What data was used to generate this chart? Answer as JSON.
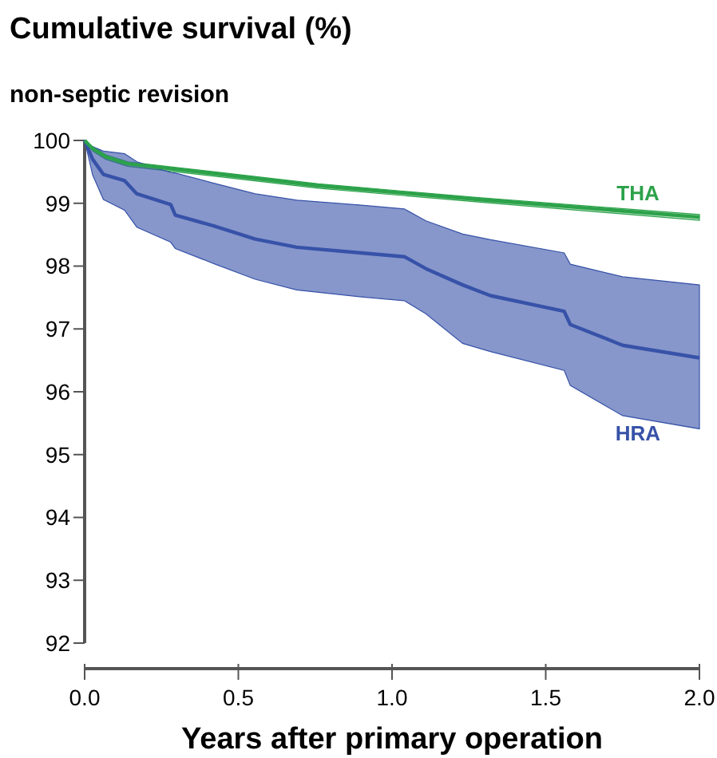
{
  "chart_data": {
    "type": "line",
    "title": "Cumulative survival (%)",
    "subtitle": "non-septic revision",
    "xlabel": "Years after primary operation",
    "xlim": [
      0,
      2
    ],
    "xticks": [
      {
        "value": 0,
        "label": "0.0"
      },
      0.5,
      {
        "value": 1,
        "label": "1.0"
      },
      1.5,
      {
        "value": 2,
        "label": "2.0"
      }
    ],
    "ylim": [
      92,
      100
    ],
    "yticks": [
      92,
      93,
      94,
      95,
      96,
      97,
      98,
      99,
      100
    ],
    "grid": false,
    "legend": false,
    "marker": "none",
    "line_style": "solid",
    "series": [
      {
        "name": "THA",
        "color": "#2ca24a",
        "x": [
          0,
          0.026,
          0.069,
          0.14,
          0.28,
          0.76,
          1.28,
          2.0
        ],
        "values": [
          100,
          99.87,
          99.74,
          99.63,
          99.55,
          99.28,
          99.06,
          98.78
        ],
        "lower": [
          100,
          99.83,
          99.7,
          99.59,
          99.51,
          99.24,
          99.02,
          98.73
        ],
        "upper": [
          100,
          99.9,
          99.77,
          99.66,
          99.58,
          99.31,
          99.09,
          98.82
        ]
      },
      {
        "name": "HRA",
        "color": "#3752a8",
        "x": [
          0,
          0.026,
          0.061,
          0.13,
          0.17,
          0.28,
          0.295,
          0.42,
          0.555,
          0.69,
          0.9,
          1.04,
          1.11,
          1.23,
          1.32,
          1.56,
          1.58,
          1.75,
          2.0
        ],
        "values": [
          100,
          99.7,
          99.46,
          99.36,
          99.15,
          98.98,
          98.81,
          98.64,
          98.43,
          98.3,
          98.21,
          98.15,
          97.96,
          97.7,
          97.53,
          97.28,
          97.07,
          96.74,
          96.54
        ],
        "lower": [
          100,
          99.45,
          99.06,
          98.89,
          98.62,
          98.38,
          98.28,
          98.04,
          97.79,
          97.62,
          97.51,
          97.45,
          97.24,
          96.77,
          96.64,
          96.34,
          96.1,
          95.62,
          95.41
        ],
        "upper": [
          100,
          99.9,
          99.83,
          99.79,
          99.66,
          99.49,
          99.48,
          99.32,
          99.15,
          99.05,
          98.97,
          98.91,
          98.72,
          98.51,
          98.42,
          98.21,
          98.03,
          97.83,
          97.7
        ]
      }
    ]
  }
}
